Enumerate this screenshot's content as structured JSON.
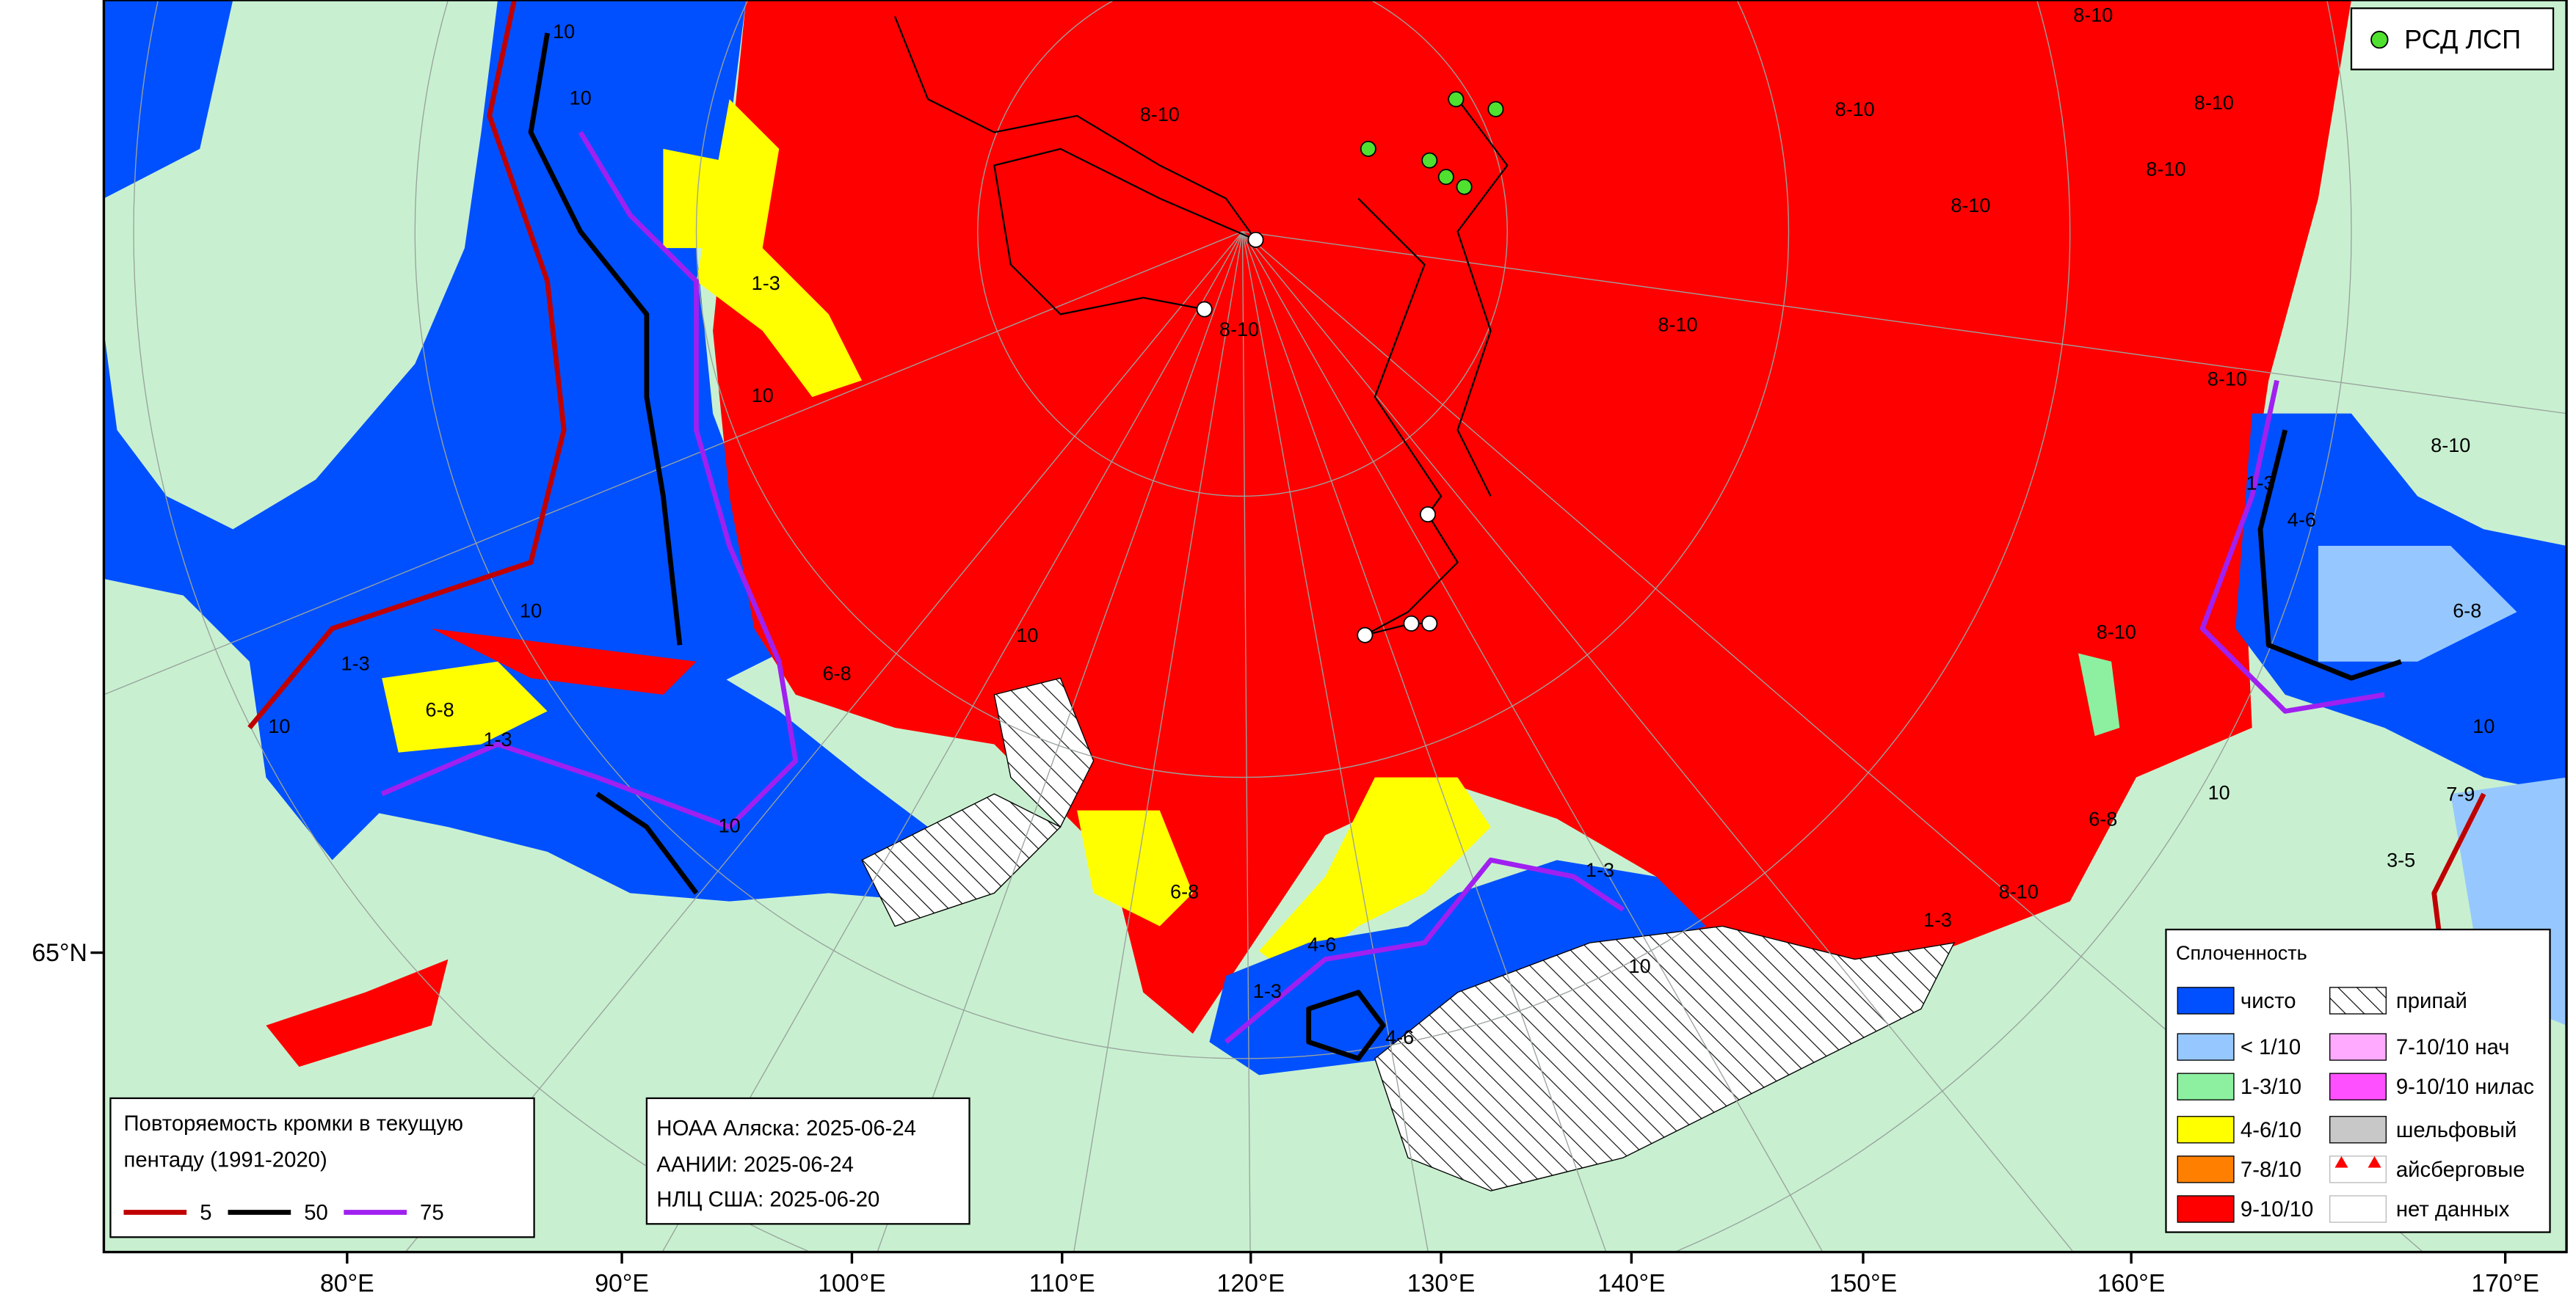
{
  "stations_legend": {
    "label": "РСД ЛСП",
    "color": "#50e030"
  },
  "edge_legend": {
    "title_lines": [
      "Повторяемость кромки в текущую",
      "пентаду (1991-2020)"
    ],
    "items": [
      {
        "label": "5",
        "color": "#c00000"
      },
      {
        "label": "50",
        "color": "#000000"
      },
      {
        "label": "75",
        "color": "#a020f0"
      }
    ]
  },
  "sources": [
    "НОАА Аляска: 2025-06-24",
    "ААНИИ: 2025-06-24",
    "НЛЦ США: 2025-06-20"
  ],
  "concentration_legend": {
    "title": "Сплоченность",
    "items": [
      {
        "label": "чисто",
        "color": "#0050ff"
      },
      {
        "label": "< 1/10",
        "color": "#96c8ff"
      },
      {
        "label": "1-3/10",
        "color": "#8cf0a0"
      },
      {
        "label": "4-6/10",
        "color": "#ffff00"
      },
      {
        "label": "7-8/10",
        "color": "#ff8000"
      },
      {
        "label": "9-10/10",
        "color": "#ff0000"
      },
      {
        "label": "припай",
        "color": "hatch"
      },
      {
        "label": "7-10/10 нач",
        "color": "#ffaaff"
      },
      {
        "label": "9-10/10 нилас",
        "color": "#ff50ff"
      },
      {
        "label": "шельфовый",
        "color": "#c8c8c8"
      },
      {
        "label": "айсберговые",
        "color": "iceberg"
      },
      {
        "label": "нет данных",
        "color": "#ffffff"
      }
    ]
  },
  "axis": {
    "x_labels": [
      "80°E",
      "90°E",
      "100°E",
      "110°E",
      "120°E",
      "130°E",
      "140°E",
      "150°E",
      "160°E",
      "170°E"
    ],
    "y_labels": [
      "65°N"
    ]
  },
  "map_labels": [
    "8-10",
    "8-10",
    "8-10",
    "8-10",
    "8-10",
    "8-10",
    "8-10",
    "8-10",
    "8-10",
    "8-10",
    "8-10",
    "8-10",
    "10",
    "10",
    "10",
    "10",
    "10",
    "10",
    "10",
    "10",
    "10",
    "10",
    "1-3",
    "1-3",
    "1-3",
    "1-3",
    "1-3",
    "1-3",
    "1-3",
    "4-6",
    "4-6",
    "4-6",
    "6-8",
    "6-8",
    "6-8",
    "6-8",
    "6-8",
    "3-5",
    "7-9"
  ]
}
